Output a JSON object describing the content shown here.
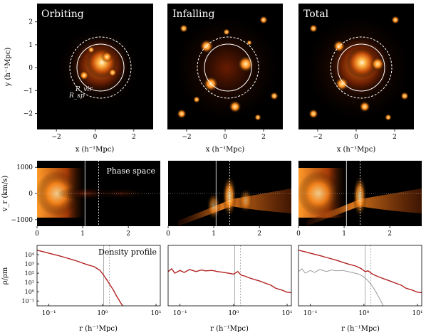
{
  "chart_data": [
    {
      "type": "heatmap",
      "panel": "Orbiting",
      "row": "projected density",
      "title": "Orbiting",
      "xlabel": "x (h⁻¹Mpc)",
      "ylabel": "y (h⁻¹Mpc)",
      "xlim": [
        -3,
        3
      ],
      "ylim": [
        -2.7,
        2.8
      ],
      "xticks": [
        -2,
        0,
        2
      ],
      "yticks": [
        -2,
        -1,
        0,
        1,
        2
      ],
      "circles": [
        {
          "label": "R_vir",
          "radius": 1.05,
          "style": "solid"
        },
        {
          "label": "R_sp",
          "radius": 1.35,
          "style": "dashed"
        }
      ],
      "annotations": [
        "R_vir",
        "R_sp"
      ]
    },
    {
      "type": "heatmap",
      "panel": "Infalling",
      "row": "projected density",
      "title": "Infalling",
      "xlabel": "x (h⁻¹Mpc)",
      "xlim": [
        -3,
        3
      ],
      "ylim": [
        -2.7,
        2.8
      ],
      "xticks": [
        -2,
        0,
        2
      ],
      "circles": [
        {
          "radius": 1.05,
          "style": "solid"
        },
        {
          "radius": 1.35,
          "style": "dashed"
        }
      ]
    },
    {
      "type": "heatmap",
      "panel": "Total",
      "row": "projected density",
      "title": "Total",
      "xlabel": "x (h⁻¹Mpc)",
      "xlim": [
        -3,
        3
      ],
      "ylim": [
        -2.7,
        2.8
      ],
      "xticks": [
        -2,
        0,
        2
      ],
      "circles": [
        {
          "radius": 1.05,
          "style": "solid"
        },
        {
          "radius": 1.35,
          "style": "dashed"
        }
      ]
    },
    {
      "type": "heatmap",
      "panel": "Orbiting",
      "row": "phase space",
      "annotation": "Phase space",
      "ylabel": "v_r (km/s)",
      "xlim": [
        0,
        2.7
      ],
      "ylim": [
        -1250,
        1250
      ],
      "xticks": [
        0,
        1,
        2
      ],
      "yticks": [
        -1000,
        0,
        1000
      ],
      "vlines": [
        {
          "x": 1.05,
          "style": "solid"
        },
        {
          "x": 1.35,
          "style": "dashed"
        }
      ],
      "hline": {
        "y": 0,
        "style": "dotted"
      }
    },
    {
      "type": "heatmap",
      "panel": "Infalling",
      "row": "phase space",
      "xlim": [
        0,
        2.7
      ],
      "ylim": [
        -1250,
        1250
      ],
      "xticks": [
        0,
        1,
        2
      ],
      "vlines": [
        {
          "x": 1.05,
          "style": "solid"
        },
        {
          "x": 1.35,
          "style": "dashed"
        }
      ],
      "hline": {
        "y": 0,
        "style": "dotted"
      }
    },
    {
      "type": "heatmap",
      "panel": "Total",
      "row": "phase space",
      "xlim": [
        0,
        2.7
      ],
      "ylim": [
        -1250,
        1250
      ],
      "xticks": [
        0,
        1,
        2
      ],
      "vlines": [
        {
          "x": 1.05,
          "style": "solid"
        },
        {
          "x": 1.35,
          "style": "dashed"
        }
      ],
      "hline": {
        "y": 0,
        "style": "dotted"
      }
    },
    {
      "type": "line",
      "panel": "Orbiting",
      "row": "density profile",
      "annotation": "Density profile",
      "xlabel": "r (h⁻¹Mpc)",
      "ylabel": "ρ/ρm",
      "xscale": "log",
      "yscale": "log",
      "xlim": [
        0.06,
        12
      ],
      "ylim": [
        0.03,
        100000
      ],
      "xticks": [
        0.1,
        1,
        10
      ],
      "yticks": [
        0.1,
        1,
        10,
        100,
        1000,
        10000
      ],
      "vlines": [
        {
          "x": 1.05,
          "style": "solid"
        },
        {
          "x": 1.35,
          "style": "dashed"
        }
      ],
      "series": [
        {
          "color": "#b22222",
          "x": [
            0.06,
            0.08,
            0.1,
            0.15,
            0.2,
            0.3,
            0.5,
            0.7,
            0.9,
            1.05,
            1.2,
            1.4,
            1.6,
            1.8,
            2.0,
            2.2,
            2.4
          ],
          "y": [
            30000,
            20000,
            14000,
            8000,
            5000,
            2500,
            900,
            500,
            200,
            60,
            20,
            5,
            1.5,
            0.4,
            0.15,
            0.06,
            0.03
          ]
        }
      ]
    },
    {
      "type": "line",
      "panel": "Infalling",
      "row": "density profile",
      "xlabel": "r (h⁻¹Mpc)",
      "xscale": "log",
      "yscale": "log",
      "xlim": [
        0.06,
        12
      ],
      "ylim": [
        0.03,
        100000
      ],
      "xticks": [
        0.1,
        1,
        10
      ],
      "vlines": [
        {
          "x": 1.05,
          "style": "solid"
        },
        {
          "x": 1.35,
          "style": "dashed"
        }
      ],
      "series": [
        {
          "color": "#b22222",
          "x": [
            0.06,
            0.07,
            0.08,
            0.1,
            0.12,
            0.15,
            0.2,
            0.25,
            0.3,
            0.4,
            0.5,
            0.6,
            0.8,
            1.0,
            1.2,
            1.4,
            1.6,
            2.0,
            2.5,
            3.0,
            4.0,
            5.0,
            6.0,
            8.0,
            10.0,
            12.0
          ],
          "y": [
            150,
            300,
            100,
            200,
            120,
            250,
            150,
            220,
            180,
            200,
            150,
            130,
            100,
            80,
            150,
            60,
            50,
            30,
            20,
            15,
            8,
            5,
            2.5,
            1.5,
            0.9,
            0.8
          ]
        }
      ]
    },
    {
      "type": "line",
      "panel": "Total",
      "row": "density profile",
      "xlabel": "r (h⁻¹Mpc)",
      "xscale": "log",
      "yscale": "log",
      "xlim": [
        0.06,
        12
      ],
      "ylim": [
        0.03,
        100000
      ],
      "xticks": [
        0.1,
        1,
        10
      ],
      "vlines": [
        {
          "x": 1.05,
          "style": "solid"
        },
        {
          "x": 1.35,
          "style": "dashed"
        }
      ],
      "series": [
        {
          "color": "#b22222",
          "x": [
            0.06,
            0.08,
            0.1,
            0.15,
            0.2,
            0.3,
            0.5,
            0.7,
            0.9,
            1.05,
            1.2,
            1.4,
            1.6,
            2.0,
            2.5,
            3.0,
            4.0,
            5.0,
            6.0,
            8.0,
            10.0,
            12.0
          ],
          "y": [
            30000,
            20000,
            14000,
            8000,
            5000,
            2600,
            1000,
            600,
            300,
            150,
            180,
            90,
            60,
            35,
            22,
            15,
            8,
            5,
            2.5,
            1.5,
            0.9,
            0.8
          ]
        },
        {
          "color": "#909090",
          "x": [
            0.06,
            0.07,
            0.08,
            0.1,
            0.12,
            0.15,
            0.2,
            0.25,
            0.3,
            0.4,
            0.5,
            0.6,
            0.8,
            1.0,
            1.2,
            1.4,
            1.6,
            2.0,
            2.3
          ],
          "y": [
            150,
            300,
            100,
            200,
            120,
            250,
            150,
            220,
            180,
            200,
            150,
            120,
            80,
            40,
            15,
            5,
            1.5,
            0.15,
            0.03
          ]
        }
      ]
    }
  ]
}
